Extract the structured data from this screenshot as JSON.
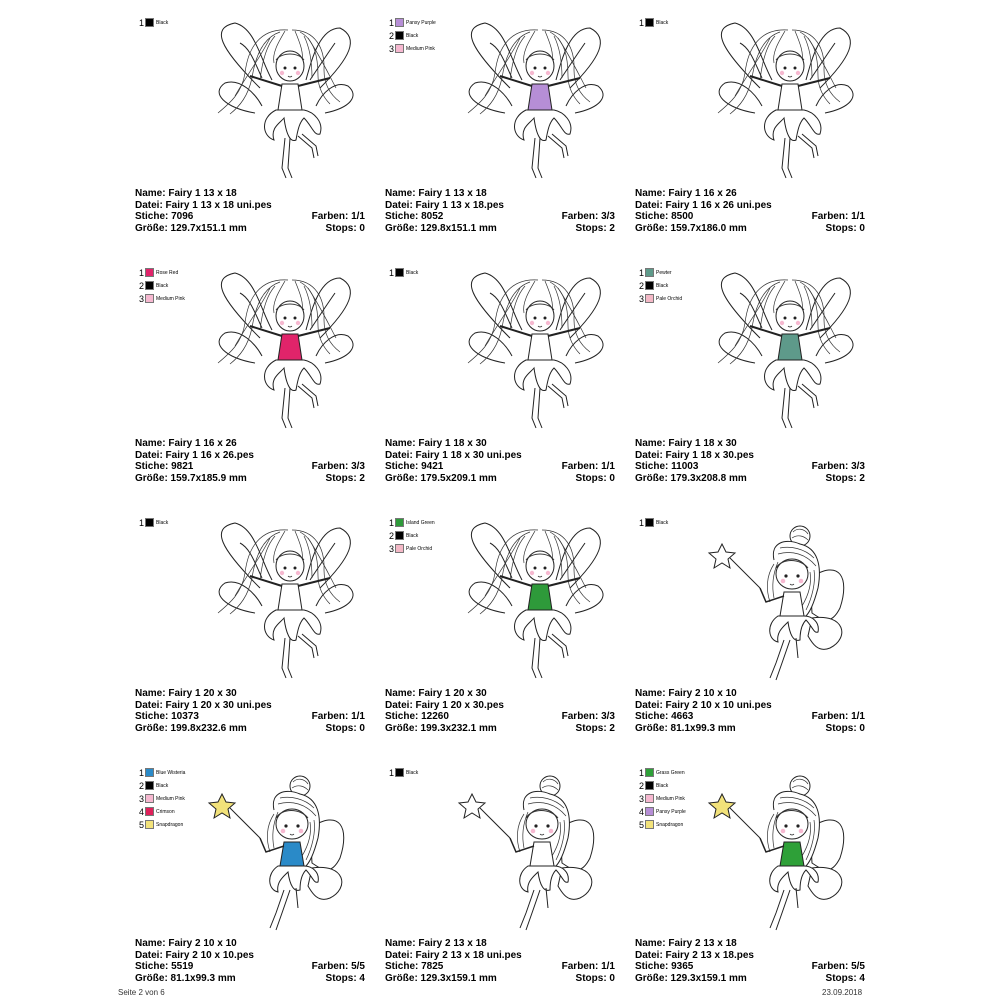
{
  "cards": [
    {
      "colors": [
        {
          "num": "1",
          "name": "Black",
          "hex": "#000000"
        }
      ],
      "dress": "none",
      "design": "fairy1",
      "name": "Name: Fairy 1 13 x 18",
      "file": "Datei: Fairy 1 13 x 18 uni.pes",
      "stitches": "Stiche: 7096",
      "colors_count": "Farben: 1/1",
      "size": "Größe: 129.7x151.1 mm",
      "stops": "Stops: 0"
    },
    {
      "colors": [
        {
          "num": "1",
          "name": "Pansy Purple",
          "hex": "#b68ed6"
        },
        {
          "num": "2",
          "name": "Black",
          "hex": "#000000"
        },
        {
          "num": "3",
          "name": "Medium Pink",
          "hex": "#f6b8d0"
        }
      ],
      "dress": "#b68ed6",
      "design": "fairy1",
      "name": "Name: Fairy 1 13 x 18",
      "file": "Datei: Fairy 1 13 x 18.pes",
      "stitches": "Stiche: 8052",
      "colors_count": "Farben: 3/3",
      "size": "Größe: 129.8x151.1 mm",
      "stops": "Stops: 2"
    },
    {
      "colors": [
        {
          "num": "1",
          "name": "Black",
          "hex": "#000000"
        }
      ],
      "dress": "none",
      "design": "fairy1",
      "name": "Name: Fairy 1 16 x 26",
      "file": "Datei: Fairy 1 16 x 26 uni.pes",
      "stitches": "Stiche: 8500",
      "colors_count": "Farben: 1/1",
      "size": "Größe: 159.7x186.0 mm",
      "stops": "Stops: 0"
    },
    {
      "colors": [
        {
          "num": "1",
          "name": "Rose Red",
          "hex": "#e0246a"
        },
        {
          "num": "2",
          "name": "Black",
          "hex": "#000000"
        },
        {
          "num": "3",
          "name": "Medium Pink",
          "hex": "#f6b8d0"
        }
      ],
      "dress": "#e0246a",
      "design": "fairy1",
      "name": "Name: Fairy 1 16 x 26",
      "file": "Datei: Fairy 1 16 x 26.pes",
      "stitches": "Stiche: 9821",
      "colors_count": "Farben: 3/3",
      "size": "Größe: 159.7x185.9 mm",
      "stops": "Stops: 2"
    },
    {
      "colors": [
        {
          "num": "1",
          "name": "Black",
          "hex": "#000000"
        }
      ],
      "dress": "none",
      "design": "fairy1",
      "name": "Name: Fairy 1 18 x 30",
      "file": "Datei: Fairy 1 18 x 30 uni.pes",
      "stitches": "Stiche: 9421",
      "colors_count": "Farben: 1/1",
      "size": "Größe: 179.5x209.1 mm",
      "stops": "Stops: 0"
    },
    {
      "colors": [
        {
          "num": "1",
          "name": "Pewter",
          "hex": "#5e9a8a"
        },
        {
          "num": "2",
          "name": "Black",
          "hex": "#000000"
        },
        {
          "num": "3",
          "name": "Pale Orchid",
          "hex": "#f4b8c6"
        }
      ],
      "dress": "#5e9a8a",
      "design": "fairy1",
      "name": "Name: Fairy 1 18 x 30",
      "file": "Datei: Fairy 1 18 x 30.pes",
      "stitches": "Stiche: 11003",
      "colors_count": "Farben: 3/3",
      "size": "Größe: 179.3x208.8 mm",
      "stops": "Stops: 2"
    },
    {
      "colors": [
        {
          "num": "1",
          "name": "Black",
          "hex": "#000000"
        }
      ],
      "dress": "none",
      "design": "fairy1",
      "name": "Name: Fairy 1 20 x 30",
      "file": "Datei: Fairy 1 20 x 30 uni.pes",
      "stitches": "Stiche: 10373",
      "colors_count": "Farben: 1/1",
      "size": "Größe: 199.8x232.6 mm",
      "stops": "Stops: 0"
    },
    {
      "colors": [
        {
          "num": "1",
          "name": "Island Green",
          "hex": "#2e9a3a"
        },
        {
          "num": "2",
          "name": "Black",
          "hex": "#000000"
        },
        {
          "num": "3",
          "name": "Pale Orchid",
          "hex": "#f4b8c6"
        }
      ],
      "dress": "#2e9a3a",
      "design": "fairy1",
      "name": "Name: Fairy 1 20 x 30",
      "file": "Datei: Fairy 1 20 x 30.pes",
      "stitches": "Stiche: 12260",
      "colors_count": "Farben: 3/3",
      "size": "Größe: 199.3x232.1 mm",
      "stops": "Stops: 2"
    },
    {
      "colors": [
        {
          "num": "1",
          "name": "Black",
          "hex": "#000000"
        }
      ],
      "dress": "none",
      "design": "fairy2",
      "name": "Name: Fairy 2 10 x 10",
      "file": "Datei: Fairy 2 10 x 10 uni.pes",
      "stitches": "Stiche: 4663",
      "colors_count": "Farben: 1/1",
      "size": "Größe: 81.1x99.3 mm",
      "stops": "Stops: 0"
    },
    {
      "colors": [
        {
          "num": "1",
          "name": "Blue Wisteria",
          "hex": "#2a8ac8"
        },
        {
          "num": "2",
          "name": "Black",
          "hex": "#000000"
        },
        {
          "num": "3",
          "name": "Medium Pink",
          "hex": "#f6b8d0"
        },
        {
          "num": "4",
          "name": "Crimson",
          "hex": "#e0205a"
        },
        {
          "num": "5",
          "name": "Snapdragon",
          "hex": "#f2e27a"
        }
      ],
      "dress": "#2a8ac8",
      "design": "fairy2",
      "name": "Name: Fairy 2 10 x 10",
      "file": "Datei: Fairy 2 10 x 10.pes",
      "stitches": "Stiche: 5519",
      "colors_count": "Farben: 5/5",
      "size": "Größe: 81.1x99.3 mm",
      "stops": "Stops: 4"
    },
    {
      "colors": [
        {
          "num": "1",
          "name": "Black",
          "hex": "#000000"
        }
      ],
      "dress": "none",
      "design": "fairy2",
      "name": "Name: Fairy 2 13 x 18",
      "file": "Datei: Fairy 2 13 x 18 uni.pes",
      "stitches": "Stiche: 7825",
      "colors_count": "Farben: 1/1",
      "size": "Größe: 129.3x159.1 mm",
      "stops": "Stops: 0"
    },
    {
      "colors": [
        {
          "num": "1",
          "name": "Grass Green",
          "hex": "#2ea038"
        },
        {
          "num": "2",
          "name": "Black",
          "hex": "#000000"
        },
        {
          "num": "3",
          "name": "Medium Pink",
          "hex": "#f6b8d0"
        },
        {
          "num": "4",
          "name": "Pansy Purple",
          "hex": "#b68ed6"
        },
        {
          "num": "5",
          "name": "Snapdragon",
          "hex": "#f2e27a"
        }
      ],
      "dress": "#2ea038",
      "design": "fairy2",
      "name": "Name: Fairy 2 13 x 18",
      "file": "Datei: Fairy 2 13 x 18.pes",
      "stitches": "Stiche: 9365",
      "colors_count": "Farben: 5/5",
      "size": "Größe: 129.3x159.1 mm",
      "stops": "Stops: 4"
    }
  ],
  "footer": {
    "page": "Seite 2 von 6",
    "date": "23.09.2018"
  }
}
